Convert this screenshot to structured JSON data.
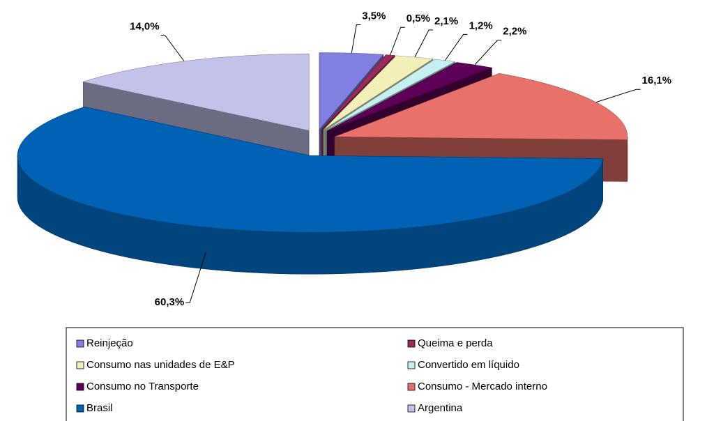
{
  "chart_data": {
    "type": "pie3d",
    "categories": [
      "Reinjeção",
      "Queima e perda",
      "Consumo nas unidades de E&P",
      "Convertido em líquido",
      "Consumo no Transporte",
      "Consumo - Mercado interno",
      "Brasil",
      "Argentina"
    ],
    "values": [
      3.5,
      0.5,
      2.1,
      1.2,
      2.2,
      16.1,
      60.3,
      14.0
    ],
    "value_labels": [
      "3,5%",
      "0,5%",
      "2,1%",
      "1,2%",
      "2,2%",
      "16,1%",
      "60,3%",
      "14,0%"
    ],
    "colors": [
      "#8080e0",
      "#9a2a5a",
      "#f2f0b8",
      "#c4f0f0",
      "#5e0058",
      "#e8726a",
      "#0062b4",
      "#c2c2ea"
    ],
    "legend": "bottom"
  }
}
